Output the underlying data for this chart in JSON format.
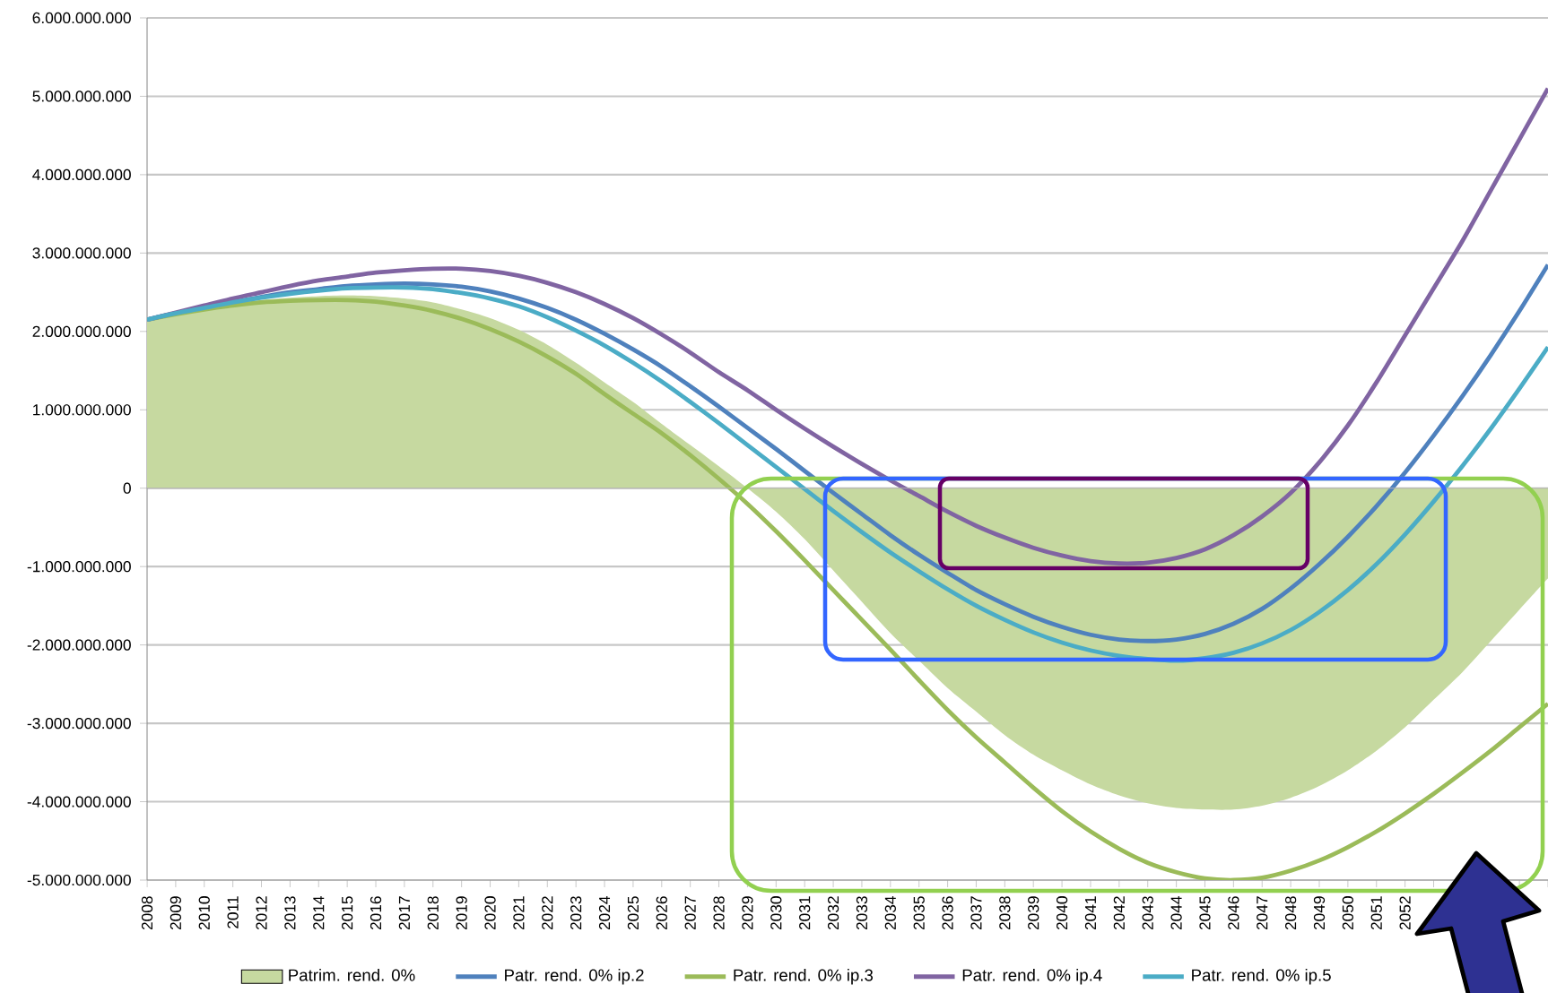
{
  "chart_data": {
    "type": "line",
    "categories": [
      "2008",
      "2009",
      "2010",
      "2011",
      "2012",
      "2013",
      "2014",
      "2015",
      "2016",
      "2017",
      "2018",
      "2019",
      "2020",
      "2021",
      "2022",
      "2023",
      "2024",
      "2025",
      "2026",
      "2027",
      "2028",
      "2029",
      "2030",
      "2031",
      "2032",
      "2033",
      "2034",
      "2035",
      "2036",
      "2037",
      "2038",
      "2039",
      "2040",
      "2041",
      "2042",
      "2043",
      "2044",
      "2045",
      "2046",
      "2047",
      "2048",
      "2049",
      "2050",
      "2051",
      "2052",
      null,
      null,
      null,
      null,
      null
    ],
    "series": [
      {
        "name": "Patrim. rend. 0%",
        "type": "area",
        "color": "#c6d9a0",
        "values": [
          2150000000.0,
          2220000000.0,
          2300000000.0,
          2350000000.0,
          2400000000.0,
          2430000000.0,
          2450000000.0,
          2460000000.0,
          2450000000.0,
          2420000000.0,
          2370000000.0,
          2280000000.0,
          2170000000.0,
          2020000000.0,
          1830000000.0,
          1600000000.0,
          1350000000.0,
          1100000000.0,
          820000000.0,
          550000000.0,
          280000000.0,
          0.0,
          -300000000.0,
          -650000000.0,
          -1050000000.0,
          -1450000000.0,
          -1850000000.0,
          -2200000000.0,
          -2550000000.0,
          -2850000000.0,
          -3150000000.0,
          -3400000000.0,
          -3600000000.0,
          -3780000000.0,
          -3920000000.0,
          -4020000000.0,
          -4080000000.0,
          -4100000000.0,
          -4100000000.0,
          -4050000000.0,
          -3950000000.0,
          -3800000000.0,
          -3600000000.0,
          -3350000000.0,
          -3050000000.0,
          -2700000000.0,
          -2350000000.0,
          -1950000000.0,
          -1550000000.0,
          -1150000000.0
        ]
      },
      {
        "name": "Patr. rend. 0% ip.2",
        "color": "#4f81bd",
        "values": [
          2150000000.0,
          2230000000.0,
          2300000000.0,
          2370000000.0,
          2440000000.0,
          2500000000.0,
          2540000000.0,
          2580000000.0,
          2600000000.0,
          2610000000.0,
          2600000000.0,
          2570000000.0,
          2510000000.0,
          2420000000.0,
          2300000000.0,
          2150000000.0,
          1970000000.0,
          1770000000.0,
          1550000000.0,
          1300000000.0,
          1040000000.0,
          770000000.0,
          500000000.0,
          220000000.0,
          -60000000.0,
          -330000000.0,
          -600000000.0,
          -850000000.0,
          -1080000000.0,
          -1300000000.0,
          -1480000000.0,
          -1640000000.0,
          -1770000000.0,
          -1870000000.0,
          -1930000000.0,
          -1950000000.0,
          -1930000000.0,
          -1860000000.0,
          -1730000000.0,
          -1540000000.0,
          -1280000000.0,
          -970000000.0,
          -620000000.0,
          -230000000.0,
          200000000.0,
          670000000.0,
          1170000000.0,
          1700000000.0,
          2260000000.0,
          2850000000.0
        ]
      },
      {
        "name": "Patr. rend. 0% ip.3",
        "color": "#9bbb59",
        "values": [
          2150000000.0,
          2220000000.0,
          2280000000.0,
          2330000000.0,
          2370000000.0,
          2390000000.0,
          2400000000.0,
          2400000000.0,
          2380000000.0,
          2330000000.0,
          2260000000.0,
          2160000000.0,
          2030000000.0,
          1870000000.0,
          1680000000.0,
          1460000000.0,
          1200000000.0,
          950000000.0,
          700000000.0,
          420000000.0,
          120000000.0,
          -200000000.0,
          -550000000.0,
          -920000000.0,
          -1300000000.0,
          -1680000000.0,
          -2060000000.0,
          -2450000000.0,
          -2830000000.0,
          -3180000000.0,
          -3500000000.0,
          -3820000000.0,
          -4120000000.0,
          -4380000000.0,
          -4600000000.0,
          -4780000000.0,
          -4900000000.0,
          -4980000000.0,
          -5000000000.0,
          -4970000000.0,
          -4880000000.0,
          -4750000000.0,
          -4580000000.0,
          -4380000000.0,
          -4150000000.0,
          -3900000000.0,
          -3630000000.0,
          -3350000000.0,
          -3050000000.0,
          -2750000000.0
        ]
      },
      {
        "name": "Patr. rend. 0% ip.4",
        "color": "#8064a2",
        "values": [
          2150000000.0,
          2240000000.0,
          2330000000.0,
          2420000000.0,
          2500000000.0,
          2580000000.0,
          2650000000.0,
          2700000000.0,
          2750000000.0,
          2780000000.0,
          2800000000.0,
          2800000000.0,
          2770000000.0,
          2710000000.0,
          2620000000.0,
          2500000000.0,
          2350000000.0,
          2170000000.0,
          1960000000.0,
          1730000000.0,
          1480000000.0,
          1250000000.0,
          1000000000.0,
          760000000.0,
          530000000.0,
          310000000.0,
          100000000.0,
          -100000000.0,
          -300000000.0,
          -480000000.0,
          -630000000.0,
          -760000000.0,
          -860000000.0,
          -930000000.0,
          -960000000.0,
          -950000000.0,
          -890000000.0,
          -780000000.0,
          -600000000.0,
          -360000000.0,
          -60000000.0,
          330000000.0,
          800000000.0,
          1350000000.0,
          1950000000.0,
          2550000000.0,
          3150000000.0,
          3800000000.0,
          4450000000.0,
          5100000000.0
        ]
      },
      {
        "name": "Patr. rend. 0% ip.5",
        "color": "#4bacc6",
        "values": [
          2150000000.0,
          2230000000.0,
          2300000000.0,
          2370000000.0,
          2430000000.0,
          2480000000.0,
          2520000000.0,
          2550000000.0,
          2560000000.0,
          2560000000.0,
          2540000000.0,
          2490000000.0,
          2420000000.0,
          2320000000.0,
          2180000000.0,
          2010000000.0,
          1820000000.0,
          1600000000.0,
          1360000000.0,
          1100000000.0,
          830000000.0,
          550000000.0,
          270000000.0,
          -10000000.0,
          -290000000.0,
          -560000000.0,
          -820000000.0,
          -1060000000.0,
          -1290000000.0,
          -1500000000.0,
          -1680000000.0,
          -1840000000.0,
          -1970000000.0,
          -2070000000.0,
          -2140000000.0,
          -2180000000.0,
          -2200000000.0,
          -2170000000.0,
          -2100000000.0,
          -1980000000.0,
          -1810000000.0,
          -1580000000.0,
          -1300000000.0,
          -970000000.0,
          -590000000.0,
          -170000000.0,
          280000000.0,
          760000000.0,
          1270000000.0,
          1800000000.0
        ]
      }
    ],
    "ylim": [
      -5000000000.0,
      6000000000.0
    ],
    "yticks": [
      {
        "value": -5000000000.0,
        "label": "-5.000.000.000"
      },
      {
        "value": -4000000000.0,
        "label": "-4.000.000.000"
      },
      {
        "value": -3000000000.0,
        "label": "-3.000.000.000"
      },
      {
        "value": -2000000000.0,
        "label": "-2.000.000.000"
      },
      {
        "value": -1000000000.0,
        "label": "-1.000.000.000"
      },
      {
        "value": 0,
        "label": "0"
      },
      {
        "value": 1000000000.0,
        "label": "1.000.000.000"
      },
      {
        "value": 2000000000.0,
        "label": "2.000.000.000"
      },
      {
        "value": 3000000000.0,
        "label": "3.000.000.000"
      },
      {
        "value": 4000000000.0,
        "label": "4.000.000.000"
      },
      {
        "value": 5000000000.0,
        "label": "5.000.000.000"
      },
      {
        "value": 6000000000.0,
        "label": "6.000.000.000"
      }
    ],
    "grid": "y",
    "legend": "bottom"
  }
}
